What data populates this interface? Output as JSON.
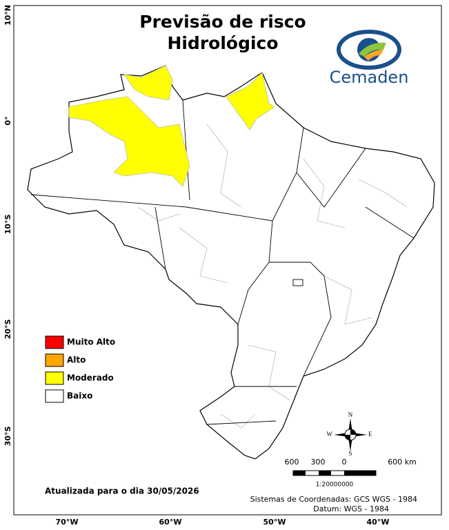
{
  "header": {
    "title_lines": [
      "Previsão de risco",
      "Hidrológico"
    ]
  },
  "logo": {
    "text": "Cemaden"
  },
  "latitude_labels": [
    "10°N",
    "0°",
    "10°S",
    "20°S",
    "30°S"
  ],
  "longitude_labels": [
    "70°W",
    "60°W",
    "50°W",
    "40°W"
  ],
  "legend": [
    {
      "label": "Muito Alto",
      "color": "#ff0000"
    },
    {
      "label": "Alto",
      "color": "#ffa500"
    },
    {
      "label": "Moderado",
      "color": "#ffff00"
    },
    {
      "label": "Baixo",
      "color": "#ffffff"
    }
  ],
  "compass": {
    "north": "N",
    "south": "S",
    "west": "W",
    "east": "E"
  },
  "scale_bar": {
    "labels": [
      "600",
      "300",
      "0",
      "600 km"
    ],
    "ratio": "1:20000000"
  },
  "footer": {
    "updated": "Atualizada para o dia 30/05/2026",
    "crs": "Sistemas de Coordenadas: GCS WGS - 1984",
    "datum": "Datum: WGS - 1984"
  }
}
